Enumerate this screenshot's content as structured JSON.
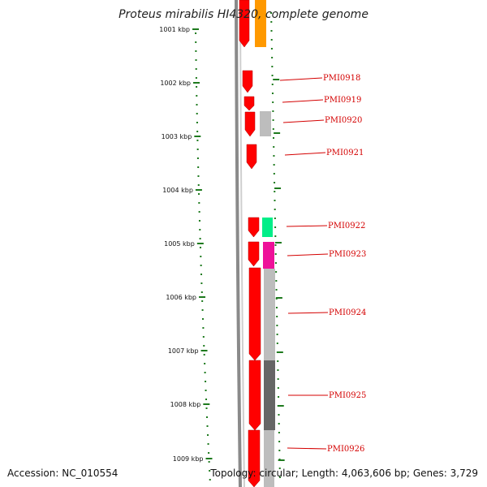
{
  "title": "Proteus mirabilis HI4320, complete genome",
  "accession": "Accession: NC_010554",
  "topology": "Topology: circular; Length: 4,063,606 bp; Genes: 3,729",
  "colors": {
    "gene_red": "#ff0000",
    "ruler_green": "#1e7a1e",
    "backbone_gray": "#8a8a8a",
    "label_red": "#d40000",
    "orange": "#ff9900",
    "teal": "#00ee88",
    "magenta": "#ee1199",
    "light_gray": "#bdbdbd",
    "dark_gray": "#666666"
  },
  "ruler": {
    "labels": [
      "1001 kbp",
      "1002 kbp",
      "1003 kbp",
      "1004 kbp",
      "1005 kbp",
      "1006 kbp",
      "1007 kbp",
      "1008 kbp",
      "1009 kbp"
    ]
  },
  "genes": [
    {
      "label": "PMI0918"
    },
    {
      "label": "PMI0919"
    },
    {
      "label": "PMI0920"
    },
    {
      "label": "PMI0921"
    },
    {
      "label": "PMI0922"
    },
    {
      "label": "PMI0923"
    },
    {
      "label": "PMI0924"
    },
    {
      "label": "PMI0925"
    },
    {
      "label": "PMI0926"
    }
  ]
}
